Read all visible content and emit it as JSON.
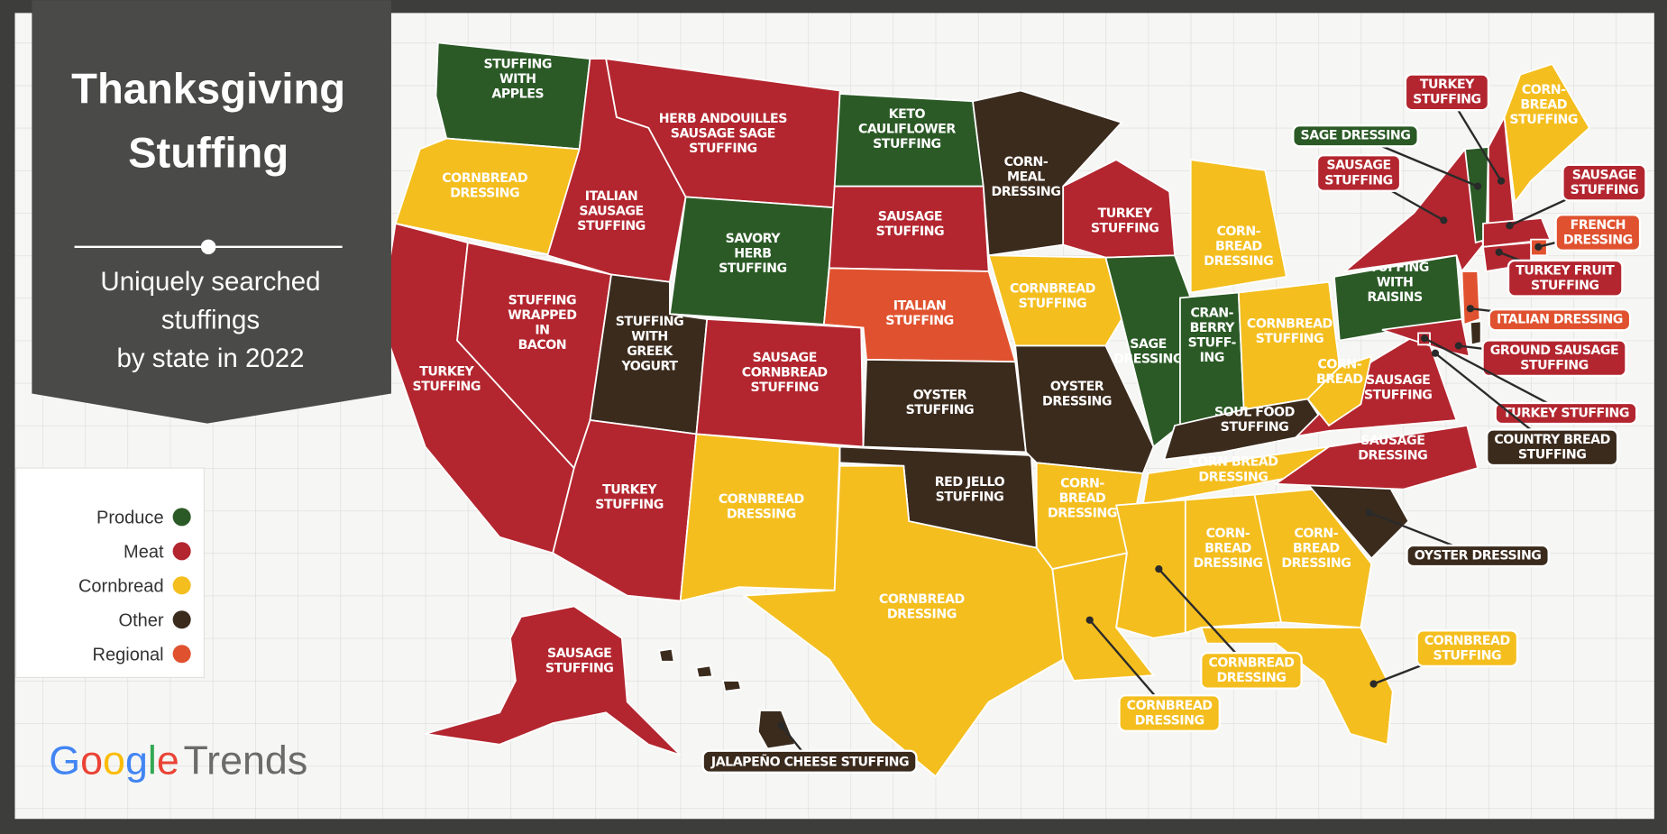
{
  "header": {
    "title": "Thanksgiving\nStuffing",
    "subtitle": "Uniquely searched\nstuffings\nby state in 2022"
  },
  "legend": [
    {
      "name": "Produce",
      "color": "#2b5a26"
    },
    {
      "name": "Meat",
      "color": "#b3262f"
    },
    {
      "name": "Cornbread",
      "color": "#f4be1f"
    },
    {
      "name": "Other",
      "color": "#3b2b1d"
    },
    {
      "name": "Regional",
      "color": "#e0522f"
    }
  ],
  "logo": {
    "brand": "Google",
    "product": "Trends"
  },
  "regions": [
    {
      "label": "STUFFING\nWITH\nAPPLES",
      "color": "#2b5a26"
    },
    {
      "label": "CORNBREAD\nDRESSING",
      "color": "#f4be1f"
    },
    {
      "label": "TURKEY\nSTUFFING",
      "color": "#b3262f"
    },
    {
      "label": "STUFFING\nWRAPPED\nIN\nBACON",
      "color": "#b3262f"
    },
    {
      "label": "ITALIAN\nSAUSAGE\nSTUFFING",
      "color": "#b3262f"
    },
    {
      "label": "HERB ANDOUILLES\nSAUSAGE SAGE\nSTUFFING",
      "color": "#b3262f"
    },
    {
      "label": "SAVORY\nHERB\nSTUFFING",
      "color": "#2b5a26"
    },
    {
      "label": "STUFFING\nWITH\nGREEK\nYOGURT",
      "color": "#3b2b1d"
    },
    {
      "label": "TURKEY\nSTUFFING",
      "color": "#b3262f"
    },
    {
      "label": "SAUSAGE\nCORNBREAD\nSTUFFING",
      "color": "#b3262f"
    },
    {
      "label": "CORNBREAD\nDRESSING",
      "color": "#f4be1f"
    },
    {
      "label": "KETO\nCAULIFLOWER\nSTUFFING",
      "color": "#2b5a26"
    },
    {
      "label": "SAUSAGE\nSTUFFING",
      "color": "#b3262f"
    },
    {
      "label": "ITALIAN\nSTUFFING",
      "color": "#e0522f"
    },
    {
      "label": "OYSTER\nSTUFFING",
      "color": "#3b2b1d"
    },
    {
      "label": "RED JELLO\nSTUFFING",
      "color": "#3b2b1d"
    },
    {
      "label": "CORNBREAD\nDRESSING",
      "color": "#f4be1f"
    },
    {
      "label": "CORN-\nMEAL\nDRESSING",
      "color": "#3b2b1d"
    },
    {
      "label": "CORNBREAD\nSTUFFING",
      "color": "#f4be1f"
    },
    {
      "label": "OYSTER\nDRESSING",
      "color": "#3b2b1d"
    },
    {
      "label": "CORN-\nBREAD\nDRESSING",
      "color": "#f4be1f"
    },
    {
      "label": "CORNBREAD\nDRESSING",
      "color": "#f4be1f"
    },
    {
      "label": "TURKEY\nSTUFFING",
      "color": "#b3262f"
    },
    {
      "label": "SAGE\nDRESSING",
      "color": "#2b5a26"
    },
    {
      "label": "CORN-\nBREAD\nDRESSING",
      "color": "#f4be1f"
    },
    {
      "label": "CRAN-\nBERRY\nSTUFF-\nING",
      "color": "#2b5a26"
    },
    {
      "label": "CORNBREAD\nSTUFFING",
      "color": "#f4be1f"
    },
    {
      "label": "SOUL FOOD\nSTUFFING",
      "color": "#3b2b1d"
    },
    {
      "label": "CORN BREAD\nDRESSING",
      "color": "#f4be1f"
    },
    {
      "label": "CORNBREAD\nDRESSING",
      "color": "#f4be1f"
    },
    {
      "label": "CORN-\nBREAD\nDRESSING",
      "color": "#f4be1f"
    },
    {
      "label": "CORN-\nBREAD\nDRESSING",
      "color": "#f4be1f"
    },
    {
      "label": "CORNBREAD\nSTUFFING",
      "color": "#f4be1f"
    },
    {
      "label": "OYSTER DRESSING",
      "color": "#3b2b1d"
    },
    {
      "label": "SAUSAGE\nDRESSING",
      "color": "#b3262f"
    },
    {
      "label": "SAUSAGE\nSTUFFING",
      "color": "#b3262f"
    },
    {
      "label": "CORN-\nBREAD",
      "color": "#f4be1f"
    },
    {
      "label": "STUFFING\nWITH\nRAISINS",
      "color": "#2b5a26"
    },
    {
      "label": "SAUSAGE\nSTUFFING",
      "color": "#b3262f"
    },
    {
      "label": "SAGE DRESSING",
      "color": "#2b5a26"
    },
    {
      "label": "TURKEY\nSTUFFING",
      "color": "#b3262f"
    },
    {
      "label": "CORN-\nBREAD\nSTUFFING",
      "color": "#f4be1f"
    },
    {
      "label": "SAUSAGE\nSTUFFING",
      "color": "#b3262f"
    },
    {
      "label": "FRENCH\nDRESSING",
      "color": "#e0522f"
    },
    {
      "label": "TURKEY FRUIT\nSTUFFING",
      "color": "#b3262f"
    },
    {
      "label": "ITALIAN DRESSING",
      "color": "#e0522f"
    },
    {
      "label": "GROUND SAUSAGE\nSTUFFING",
      "color": "#b3262f"
    },
    {
      "label": "TURKEY STUFFING",
      "color": "#b3262f"
    },
    {
      "label": "COUNTRY BREAD\nSTUFFING",
      "color": "#3b2b1d"
    },
    {
      "label": "SAUSAGE\nSTUFFING",
      "color": "#b3262f"
    },
    {
      "label": "JALAPEÑO CHEESE STUFFING",
      "color": "#3b2b1d"
    }
  ]
}
